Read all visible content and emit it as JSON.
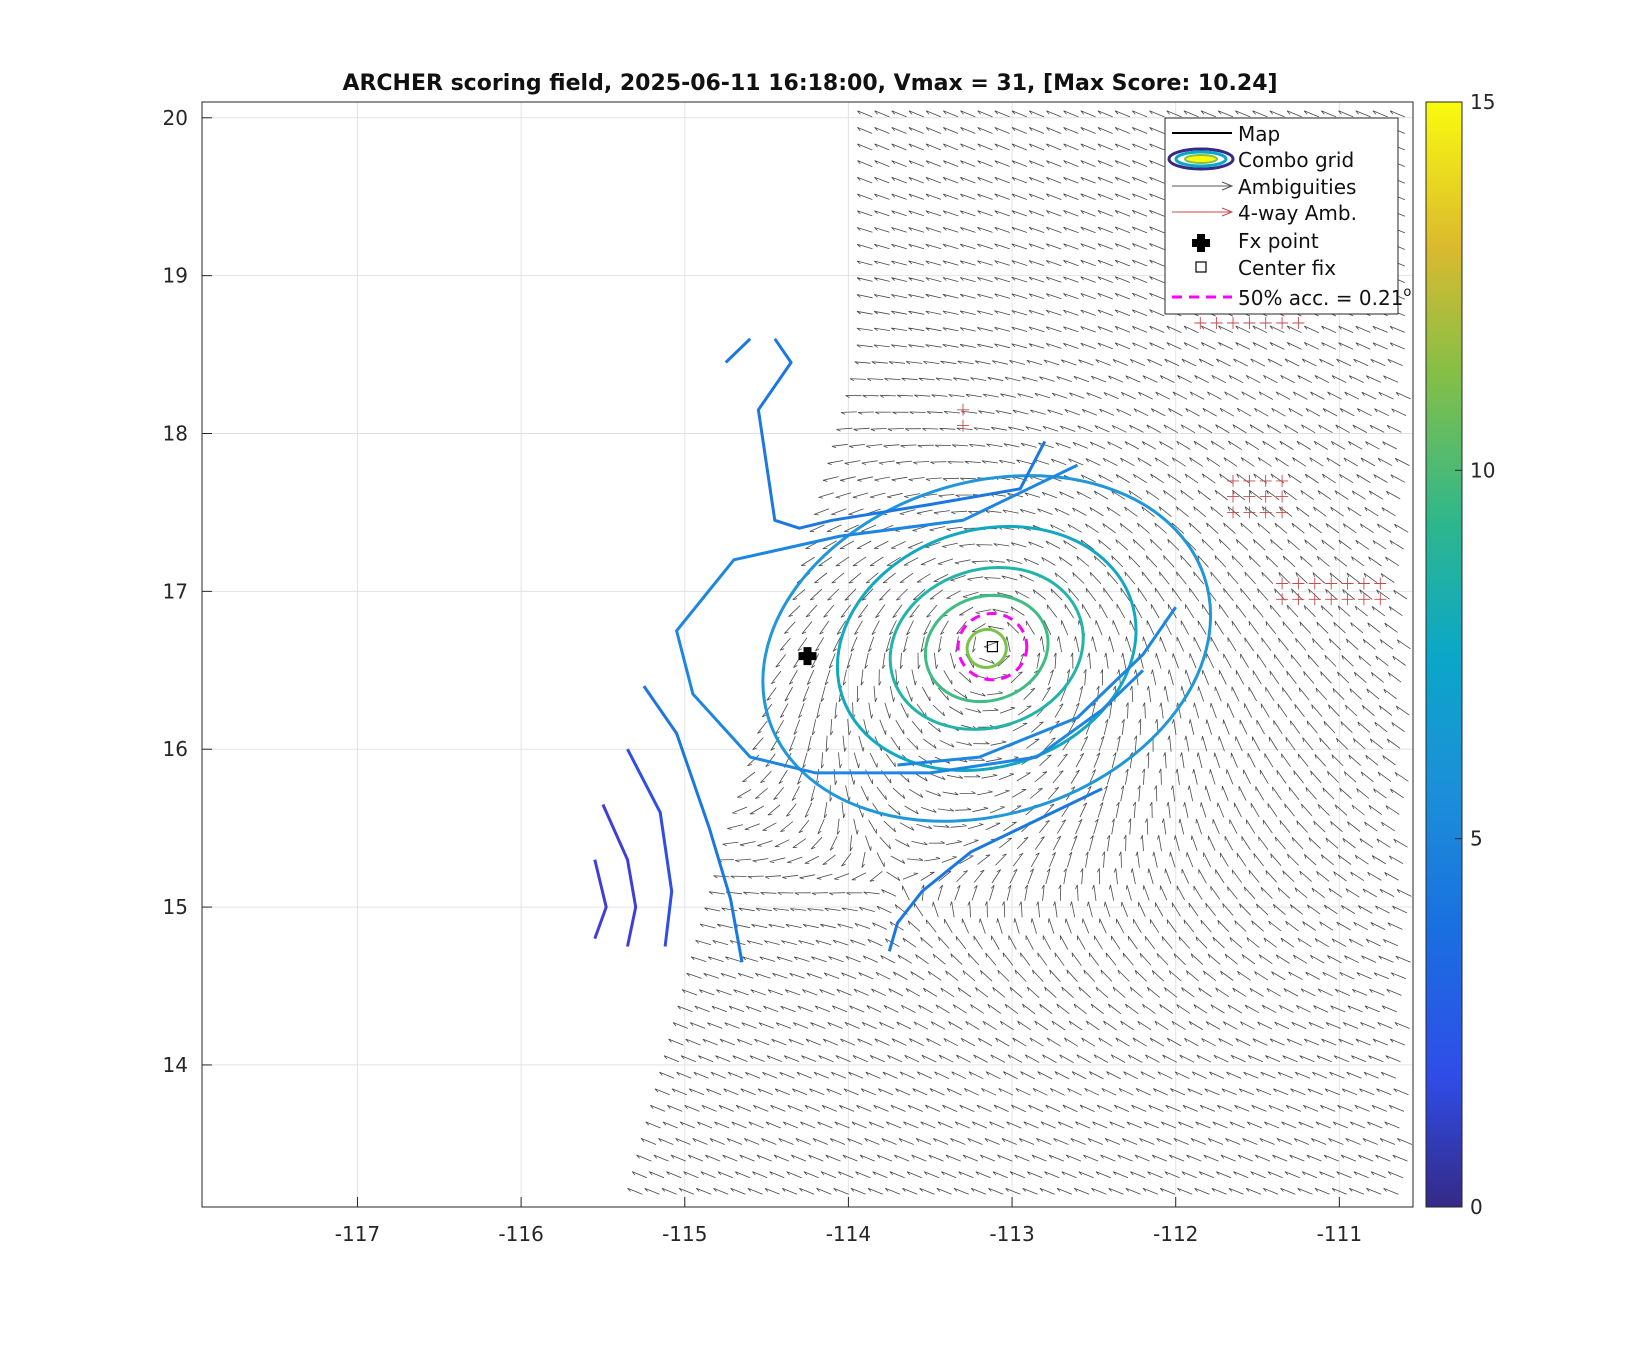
{
  "figure": {
    "title": "ARCHER scoring field, 2025-06-11 16:18:00, Vmax = 31, [Max Score: 10.24]"
  },
  "chart_data": {
    "type": "contour",
    "title": "ARCHER scoring field, 2025-06-11 16:18:00, Vmax = 31, [Max Score: 10.24]",
    "xlabel": "",
    "ylabel": "",
    "xlim": [
      -117.95,
      -110.55
    ],
    "ylim": [
      13.1,
      20.1
    ],
    "xticks": [
      -117,
      -116,
      -115,
      -114,
      -113,
      -112,
      -111
    ],
    "yticks": [
      14,
      15,
      16,
      17,
      18,
      19,
      20
    ],
    "grid": true,
    "colorbar": {
      "range": [
        0,
        15
      ],
      "ticks": [
        0,
        5,
        10,
        15
      ],
      "colormap": "parula"
    },
    "center_fix": {
      "lon": -113.12,
      "lat": 16.65
    },
    "fx_point": {
      "lon": -114.25,
      "lat": 16.59
    },
    "acc_50pct_radius_deg": 0.21,
    "max_score": 10.24,
    "vmax": 31,
    "legend": {
      "position": "top-right",
      "entries": [
        "Map",
        "Combo grid",
        "Ambiguities",
        "4-way Amb.",
        "Fx point",
        "Center fix",
        "50% acc. = 0.21"
      ]
    },
    "contour_levels": [
      {
        "level": 9.6,
        "color": "#7ac34a",
        "rx": 0.12,
        "ry": 0.12
      },
      {
        "level": 8.6,
        "color": "#3ebd83",
        "rx": 0.38,
        "ry": 0.33
      },
      {
        "level": 7.6,
        "color": "#22b4a8",
        "rx": 0.6,
        "ry": 0.5
      },
      {
        "level": 6.6,
        "color": "#12a8c0",
        "rx": 0.93,
        "ry": 0.75
      },
      {
        "level": 5.6,
        "color": "#1f97d9",
        "rx": 1.4,
        "ry": 1.05
      }
    ],
    "ambiguity_colors": {
      "ambiguities": "#555555",
      "four_way": "#c24a4a"
    }
  }
}
